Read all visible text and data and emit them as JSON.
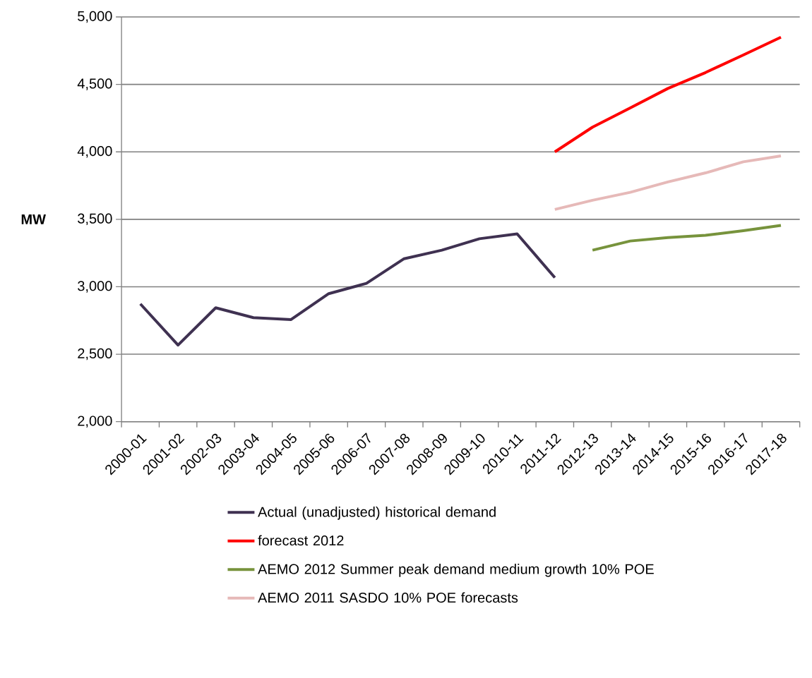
{
  "chart_data": {
    "type": "line",
    "ylabel": "MW",
    "categories": [
      "2000-01",
      "2001-02",
      "2002-03",
      "2003-04",
      "2004-05",
      "2005-06",
      "2006-07",
      "2007-08",
      "2008-09",
      "2009-10",
      "2010-11",
      "2011-12",
      "2012-13",
      "2013-14",
      "2014-15",
      "2015-16",
      "2016-17",
      "2017-18"
    ],
    "series": [
      {
        "name": "Actual (unadjusted) historical demand",
        "color": "#3f3151",
        "values": [
          2873,
          2568,
          2844,
          2771,
          2757,
          2949,
          3025,
          3208,
          3271,
          3356,
          3392,
          3068,
          null,
          null,
          null,
          null,
          null,
          null
        ]
      },
      {
        "name": "forecast 2012",
        "color": "#ff0000",
        "values": [
          null,
          null,
          null,
          null,
          null,
          null,
          null,
          null,
          null,
          null,
          null,
          4000,
          4183,
          4325,
          4470,
          4588,
          4718,
          4850
        ]
      },
      {
        "name": "AEMO 2012 Summer peak demand medium growth 10% POE",
        "color": "#77933c",
        "values": [
          null,
          null,
          null,
          null,
          null,
          null,
          null,
          null,
          null,
          null,
          null,
          null,
          3271,
          3339,
          3365,
          3381,
          3416,
          3455
        ]
      },
      {
        "name": "AEMO 2011 SASDO 10% POE forecasts",
        "color": "#e6b9b8",
        "values": [
          null,
          null,
          null,
          null,
          null,
          null,
          null,
          null,
          null,
          null,
          null,
          3573,
          3641,
          3700,
          3777,
          3844,
          3926,
          3970
        ]
      }
    ],
    "ylim": [
      2000,
      5000
    ],
    "yticks": [
      {
        "value": 2000,
        "label": "2,000"
      },
      {
        "value": 2500,
        "label": "2,500"
      },
      {
        "value": 3000,
        "label": "3,000"
      },
      {
        "value": 3500,
        "label": "3,500"
      },
      {
        "value": 4000,
        "label": "4,000"
      },
      {
        "value": 4500,
        "label": "4,500"
      },
      {
        "value": 5000,
        "label": "5,000"
      }
    ],
    "grid": "y",
    "legend": "bottom",
    "marker": "none",
    "line_style": "solid"
  }
}
